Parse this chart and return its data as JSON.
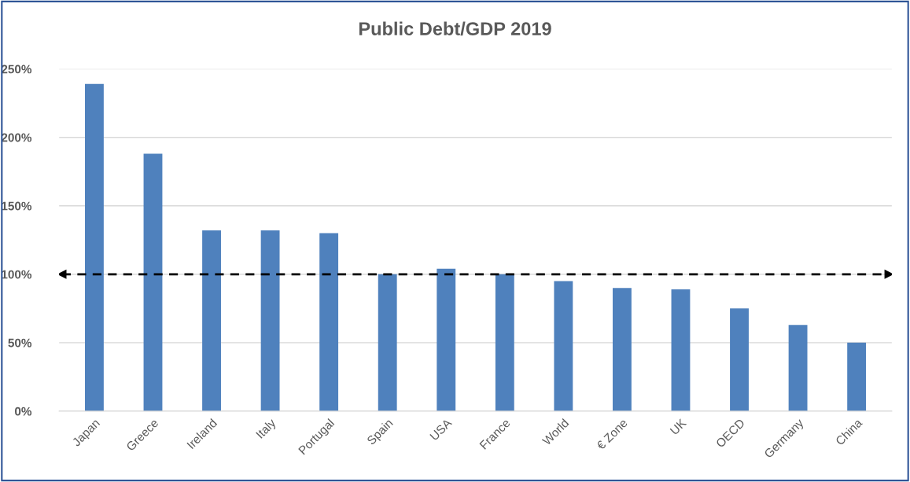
{
  "chart_data": {
    "type": "bar",
    "title": "Public Debt/GDP 2019",
    "categories": [
      "Japan",
      "Greece",
      "Ireland",
      "Italy",
      "Portugal",
      "Spain",
      "USA",
      "France",
      "World",
      "€ Zone",
      "UK",
      "OECD",
      "Germany",
      "China"
    ],
    "values": [
      239,
      188,
      132,
      132,
      130,
      100,
      104,
      100,
      95,
      90,
      89,
      75,
      63,
      50
    ],
    "color": "#4f81bd",
    "ylim": [
      0,
      250
    ],
    "yticks": [
      {
        "value": 0,
        "label": "0%"
      },
      {
        "value": 50,
        "label": "50%"
      },
      {
        "value": 100,
        "label": "100%"
      },
      {
        "value": 150,
        "label": "150%"
      },
      {
        "value": 200,
        "label": "200%"
      },
      {
        "value": 250,
        "label": "250%"
      }
    ],
    "grid": "y",
    "ref_lines": [
      {
        "axis": "y",
        "value": 100,
        "color": "#000000",
        "line_style": "dashed"
      }
    ]
  }
}
